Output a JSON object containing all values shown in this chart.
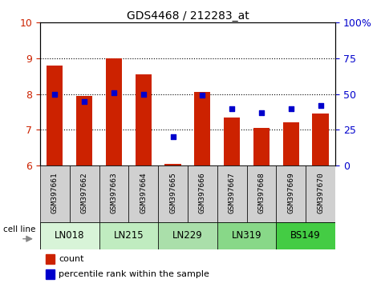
{
  "title": "GDS4468 / 212283_at",
  "samples": [
    "GSM397661",
    "GSM397662",
    "GSM397663",
    "GSM397664",
    "GSM397665",
    "GSM397666",
    "GSM397667",
    "GSM397668",
    "GSM397669",
    "GSM397670"
  ],
  "count_values": [
    8.8,
    7.95,
    9.0,
    8.55,
    6.05,
    8.05,
    7.35,
    7.05,
    7.2,
    7.45
  ],
  "percentile_values": [
    50,
    45,
    51,
    50,
    20,
    49,
    40,
    37,
    40,
    42
  ],
  "cell_lines": [
    {
      "label": "LN018",
      "start": 0,
      "end": 1,
      "color": "#d8f4d8"
    },
    {
      "label": "LN215",
      "start": 2,
      "end": 3,
      "color": "#c0ecc0"
    },
    {
      "label": "LN229",
      "start": 4,
      "end": 5,
      "color": "#aadfaa"
    },
    {
      "label": "LN319",
      "start": 6,
      "end": 7,
      "color": "#88d888"
    },
    {
      "label": "BS149",
      "start": 8,
      "end": 9,
      "color": "#44cc44"
    }
  ],
  "ylim_left": [
    6,
    10
  ],
  "ylim_right": [
    0,
    100
  ],
  "bar_color": "#cc2200",
  "dot_color": "#0000cc",
  "bar_bottom": 6,
  "yticks_left": [
    6,
    7,
    8,
    9,
    10
  ],
  "yticks_right": [
    0,
    25,
    50,
    75,
    100
  ],
  "ytick_right_labels": [
    "0",
    "25",
    "50",
    "75",
    "100%"
  ],
  "legend_count_label": "count",
  "legend_pct_label": "percentile rank within the sample",
  "cell_line_label": "cell line",
  "sample_bg_color": "#d0d0d0",
  "grid_yticks": [
    7,
    8,
    9
  ]
}
